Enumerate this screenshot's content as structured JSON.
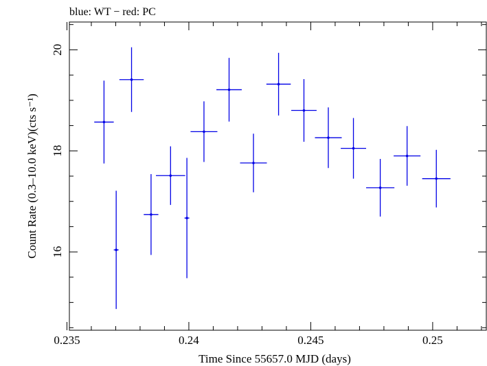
{
  "chart_data": {
    "type": "scatter",
    "title": "blue: WT − red: PC",
    "xlabel": "Time Since 55657.0 MJD (days)",
    "ylabel": "Count Rate (0.3–10.0 keV)(cts s⁻¹)",
    "xlim": [
      0.2351,
      0.2522
    ],
    "ylim": [
      14.45,
      20.55
    ],
    "x_ticks": [
      0.235,
      0.24,
      0.245,
      0.25
    ],
    "x_tick_labels": [
      "0.235",
      "0.24",
      "0.245",
      "0.25"
    ],
    "y_ticks": [
      16,
      18,
      20
    ],
    "y_tick_labels": [
      "16",
      "18",
      "20"
    ],
    "grid": false,
    "series": [
      {
        "name": "WT",
        "color": "#0000e6",
        "points": [
          {
            "x": 0.23652,
            "xerr": 0.0004,
            "y": 18.57,
            "yerr": 0.82
          },
          {
            "x": 0.23702,
            "xerr": 0.0001,
            "y": 16.04,
            "yerr": 1.17
          },
          {
            "x": 0.23765,
            "xerr": 0.0005,
            "y": 19.41,
            "yerr": 0.64
          },
          {
            "x": 0.23845,
            "xerr": 0.0003,
            "y": 16.74,
            "yerr": 0.8
          },
          {
            "x": 0.23925,
            "xerr": 0.0006,
            "y": 17.51,
            "yerr": 0.58
          },
          {
            "x": 0.23992,
            "xerr": 0.0001,
            "y": 16.67,
            "yerr": 1.19
          },
          {
            "x": 0.24062,
            "xerr": 0.00055,
            "y": 18.38,
            "yerr": 0.6
          },
          {
            "x": 0.24165,
            "xerr": 0.00052,
            "y": 19.21,
            "yerr": 0.63
          },
          {
            "x": 0.24265,
            "xerr": 0.00055,
            "y": 17.76,
            "yerr": 0.58
          },
          {
            "x": 0.24368,
            "xerr": 0.0005,
            "y": 19.32,
            "yerr": 0.62
          },
          {
            "x": 0.24472,
            "xerr": 0.00052,
            "y": 18.8,
            "yerr": 0.62
          },
          {
            "x": 0.24572,
            "xerr": 0.00055,
            "y": 18.26,
            "yerr": 0.6
          },
          {
            "x": 0.24675,
            "xerr": 0.00052,
            "y": 18.05,
            "yerr": 0.6
          },
          {
            "x": 0.24785,
            "xerr": 0.00058,
            "y": 17.27,
            "yerr": 0.57
          },
          {
            "x": 0.24895,
            "xerr": 0.00055,
            "y": 17.9,
            "yerr": 0.59
          },
          {
            "x": 0.25015,
            "xerr": 0.00058,
            "y": 17.45,
            "yerr": 0.57
          }
        ]
      }
    ]
  }
}
